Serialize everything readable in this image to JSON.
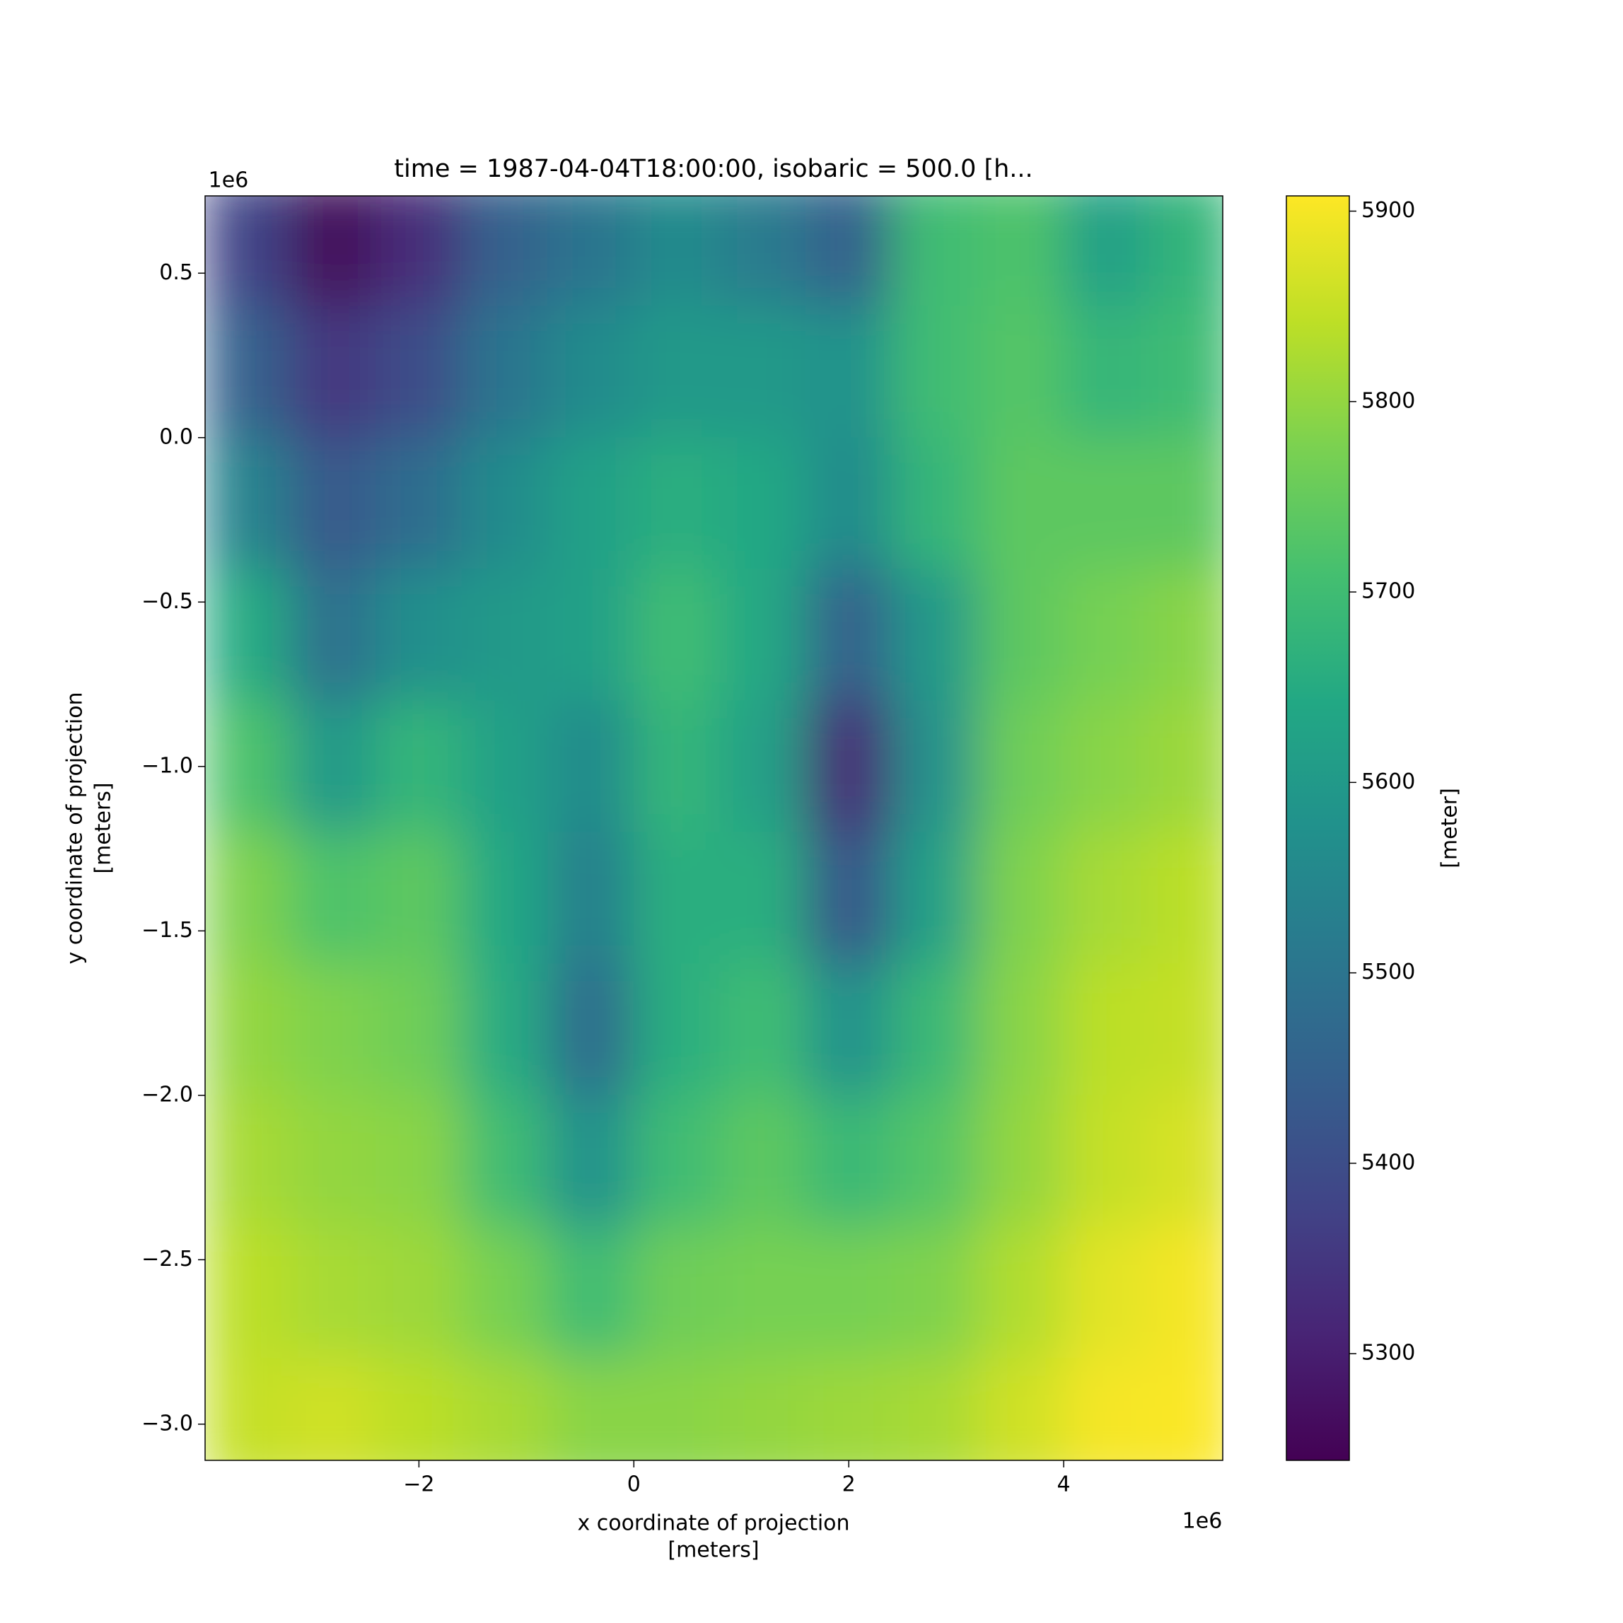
{
  "chart_data": {
    "type": "heatmap",
    "title": "time = 1987-04-04T18:00:00, isobaric = 500.0 [h...",
    "xlabel": [
      "x coordinate of projection",
      "[meters]"
    ],
    "ylabel": [
      "y coordinate of projection",
      "[meters]"
    ],
    "x_offset_label": "1e6",
    "y_offset_label": "1e6",
    "colorbar_label": "[meter]",
    "colormap": "viridis",
    "x": [
      -3.6,
      -2.8,
      -2.0,
      -1.2,
      -0.4,
      0.4,
      1.2,
      2.0,
      2.8,
      3.6,
      4.4,
      5.2
    ],
    "y": [
      0.6,
      0.2,
      -0.2,
      -0.6,
      -1.0,
      -1.4,
      -1.8,
      -2.2,
      -2.6,
      -3.0
    ],
    "z": [
      [
        5380,
        5260,
        5330,
        5450,
        5500,
        5560,
        5520,
        5450,
        5700,
        5720,
        5620,
        5680
      ],
      [
        5450,
        5350,
        5400,
        5500,
        5560,
        5600,
        5600,
        5580,
        5700,
        5730,
        5680,
        5700
      ],
      [
        5540,
        5430,
        5480,
        5560,
        5620,
        5660,
        5640,
        5560,
        5680,
        5740,
        5740,
        5740
      ],
      [
        5650,
        5490,
        5570,
        5600,
        5620,
        5700,
        5640,
        5450,
        5600,
        5740,
        5770,
        5790
      ],
      [
        5720,
        5600,
        5680,
        5620,
        5560,
        5680,
        5620,
        5320,
        5580,
        5760,
        5790,
        5810
      ],
      [
        5780,
        5720,
        5740,
        5640,
        5530,
        5660,
        5660,
        5420,
        5620,
        5780,
        5820,
        5840
      ],
      [
        5800,
        5780,
        5760,
        5650,
        5480,
        5660,
        5700,
        5580,
        5690,
        5790,
        5840,
        5850
      ],
      [
        5820,
        5800,
        5790,
        5700,
        5580,
        5700,
        5740,
        5690,
        5730,
        5800,
        5850,
        5870
      ],
      [
        5840,
        5820,
        5810,
        5770,
        5700,
        5760,
        5770,
        5770,
        5780,
        5830,
        5880,
        5900
      ],
      [
        5850,
        5860,
        5840,
        5820,
        5790,
        5790,
        5800,
        5810,
        5820,
        5860,
        5900,
        5905
      ]
    ],
    "xlim": [
      -3.99,
      5.48
    ],
    "ylim": [
      -3.11,
      0.735
    ],
    "xticks": [
      {
        "value": -2,
        "label": "−2"
      },
      0,
      2,
      4
    ],
    "yticks": [
      {
        "value": 0.5,
        "label": "0.5"
      },
      {
        "value": 0,
        "label": "0.0"
      },
      {
        "value": -0.5,
        "label": "−0.5"
      },
      {
        "value": -1,
        "label": "−1.0"
      },
      {
        "value": -1.5,
        "label": "−1.5"
      },
      {
        "value": -2,
        "label": "−2.0"
      },
      {
        "value": -2.5,
        "label": "−2.5"
      },
      {
        "value": -3,
        "label": "−3.0"
      }
    ],
    "clim": [
      5244,
      5908
    ],
    "cticks": [
      5300,
      5400,
      5500,
      5600,
      5700,
      5800,
      5900
    ]
  }
}
